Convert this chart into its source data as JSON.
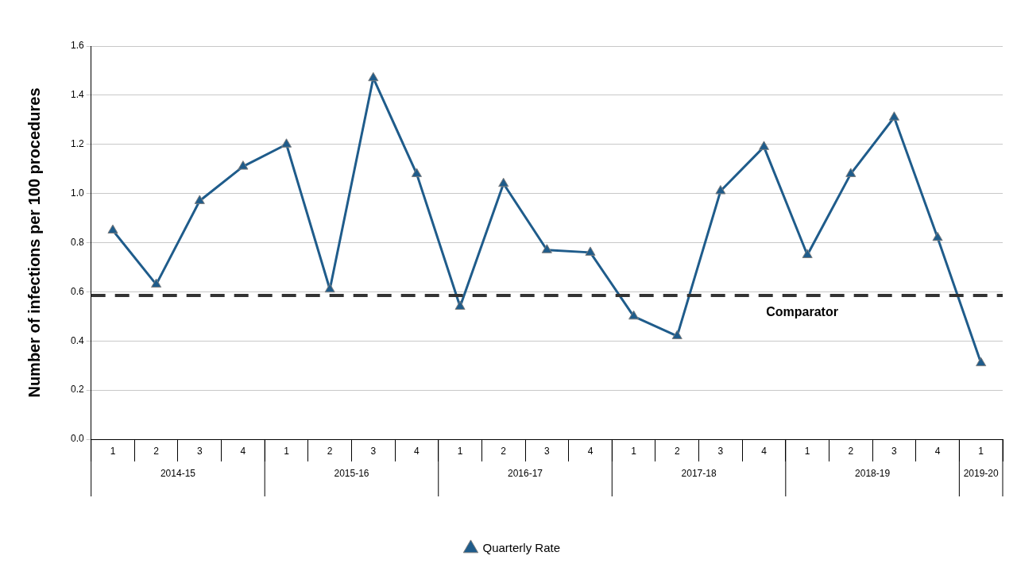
{
  "chart_data": {
    "type": "line",
    "ylabel": "Number of infections per 100 procedures",
    "categories": [
      "1",
      "2",
      "3",
      "4",
      "1",
      "2",
      "3",
      "4",
      "1",
      "2",
      "3",
      "4",
      "1",
      "2",
      "3",
      "4",
      "1",
      "2",
      "3",
      "4",
      "1"
    ],
    "series": [
      {
        "name": "Quarterly Rate",
        "color": "#1f5c8b",
        "values": [
          0.85,
          0.63,
          0.97,
          1.11,
          1.2,
          0.61,
          1.47,
          1.08,
          0.54,
          1.04,
          0.77,
          0.76,
          0.5,
          0.42,
          1.01,
          1.19,
          0.75,
          1.08,
          1.31,
          0.82,
          0.31
        ]
      }
    ],
    "annotations": [
      "2014-15",
      "2015-16",
      "2016-17",
      "2017-18",
      "2018-19",
      "2019-20"
    ],
    "ref_lines": [
      {
        "axis": "y",
        "value": 0.585,
        "label": "Comparator",
        "color": "#333333",
        "line_style": "dashed"
      }
    ],
    "ylim": [
      0,
      1.6
    ],
    "yticks": [
      {
        "value": 0,
        "label": "0.0"
      },
      {
        "value": 0.2,
        "label": "0.2"
      },
      {
        "value": 0.4,
        "label": "0.4"
      },
      {
        "value": 0.6,
        "label": "0.6"
      },
      {
        "value": 0.8,
        "label": "0.8"
      },
      {
        "value": 1,
        "label": "1.0"
      },
      {
        "value": 1.2,
        "label": "1.2"
      },
      {
        "value": 1.4,
        "label": "1.4"
      },
      {
        "value": 1.6,
        "label": "1.6"
      }
    ],
    "grid": "y",
    "legend": "bottom",
    "marker": "triangle",
    "line_style": "solid"
  }
}
